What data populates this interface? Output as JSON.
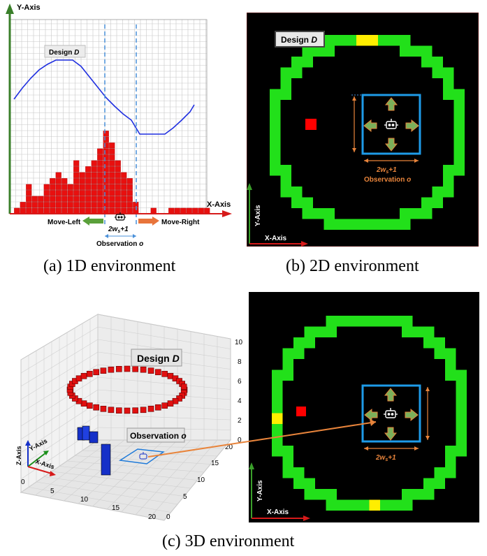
{
  "captions": {
    "a": "(a) 1D environment",
    "b": "(b) 2D environment",
    "c": "(c) 3D environment"
  },
  "env1d": {
    "y_axis": "Y-Axis",
    "x_axis": "X-Axis",
    "design_label": "Design ",
    "design_symbol": "D",
    "move_left": "Move-Left",
    "move_right": "Move-Right",
    "window_label": "2w",
    "window_sub": "s",
    "window_suffix": "+1",
    "observation": "Observation ",
    "observation_symbol": "o",
    "bars": [
      1,
      2,
      5,
      3,
      3,
      5,
      6,
      7,
      6,
      5,
      9,
      7,
      8,
      9,
      11,
      14,
      12,
      9,
      7,
      6,
      2,
      0,
      0,
      1,
      0,
      0,
      1,
      1,
      1,
      1,
      1,
      1,
      1
    ],
    "colors": {
      "bar": "#e8100f",
      "curve": "#1f2fe0",
      "axis_y": "#3a7f2a",
      "axis_x": "#d61a1a",
      "dash": "#4a90d9",
      "left_arrow": "#5aa03a",
      "right_arrow": "#e8743b"
    }
  },
  "env2d": {
    "design_label": "Design ",
    "design_symbol": "D",
    "window_label": "2w",
    "window_sub": "s",
    "window_suffix": "+1",
    "observation": "Observation ",
    "observation_symbol": "o",
    "y_axis": "Y-Axis",
    "x_axis": "X-Axis",
    "colors": {
      "bg": "#000000",
      "ring": "#22e01a",
      "goal": "#ffee00",
      "red": "#ff0000",
      "window": "#1e9be8",
      "arrow": "#7bb05a",
      "annot": "#e8843b"
    }
  },
  "env3d": {
    "design_label": "Design ",
    "design_symbol": "D",
    "observation": "Observation ",
    "observation_symbol": "o",
    "z_ticks": [
      "0",
      "2",
      "4",
      "6",
      "8",
      "10"
    ],
    "x_ticks": [
      "0",
      "5",
      "10",
      "15",
      "20"
    ],
    "y_ticks": [
      "0",
      "5",
      "10",
      "15",
      "20"
    ],
    "axis_x": "X-Axis",
    "axis_y": "Y-Axis",
    "axis_z": "Z-Axis"
  },
  "env3dmap": {
    "window_label": "2w",
    "window_sub": "s",
    "window_suffix": "+1",
    "y_axis": "Y-Axis",
    "x_axis": "X-Axis"
  }
}
